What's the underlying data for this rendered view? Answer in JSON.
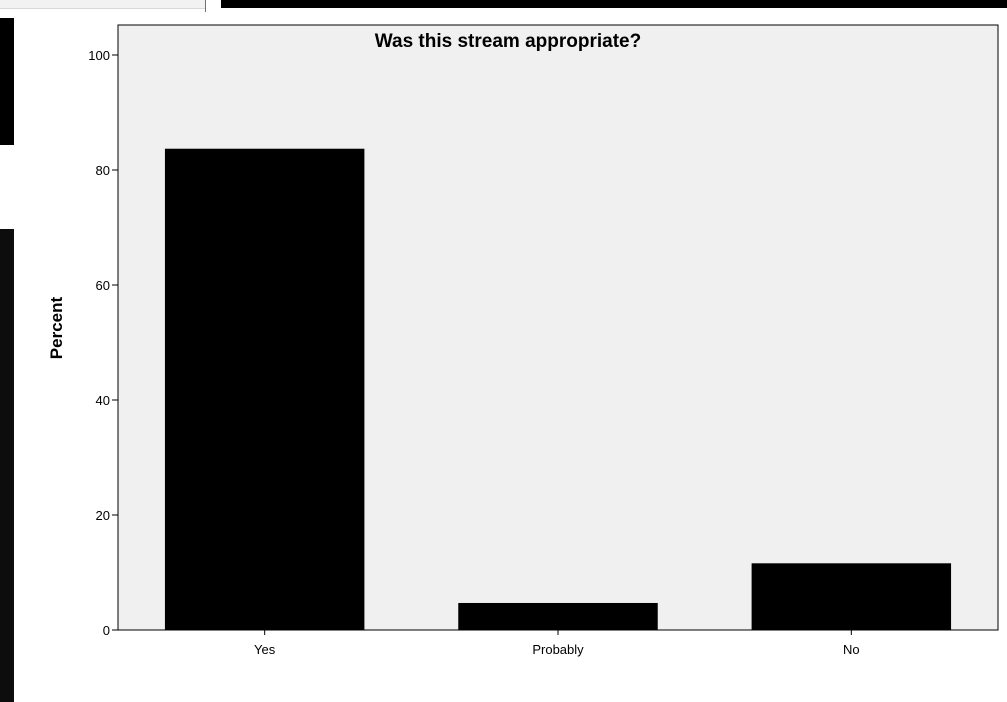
{
  "chart_data": {
    "type": "bar",
    "title": "Was this stream appropriate?",
    "xlabel": "",
    "ylabel": "Percent",
    "categories": [
      "Yes",
      "Probably",
      "No"
    ],
    "values": [
      83.7,
      4.7,
      11.6
    ],
    "ylim": [
      0,
      100
    ],
    "yticks": [
      "0",
      "20",
      "40",
      "60",
      "80",
      "100"
    ],
    "bar_color": "#000000",
    "plot_background": "#f0f0f0",
    "grid": false,
    "legend": "none"
  }
}
